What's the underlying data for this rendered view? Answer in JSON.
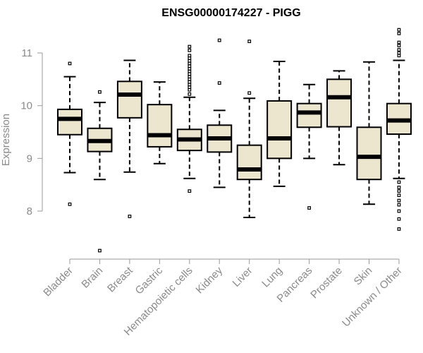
{
  "chart_data": {
    "type": "boxplot",
    "title": "ENSG00000174227 - PIGG",
    "ylabel": "Expression",
    "xlabel": "",
    "ylim": [
      7.0,
      11.6
    ],
    "yticks": [
      "8",
      "9",
      "10",
      "11"
    ],
    "box_fill": "#ede6cf",
    "categories": [
      "Bladder",
      "Brain",
      "Breast",
      "Gastric",
      "Hematopoietic cells",
      "Kidney",
      "Liver",
      "Lung",
      "Pancreas",
      "Prostate",
      "Skin",
      "Unknown / Other"
    ],
    "series": [
      {
        "category": "Bladder",
        "whisker_low": 8.73,
        "q1": 9.45,
        "median": 9.75,
        "q3": 9.93,
        "whisker_high": 10.55,
        "outliers": [
          10.8,
          8.13
        ]
      },
      {
        "category": "Brain",
        "whisker_low": 8.6,
        "q1": 9.13,
        "median": 9.33,
        "q3": 9.57,
        "whisker_high": 10.06,
        "outliers": [
          10.26,
          7.25
        ]
      },
      {
        "category": "Breast",
        "whisker_low": 8.74,
        "q1": 9.77,
        "median": 10.21,
        "q3": 10.46,
        "whisker_high": 10.86,
        "outliers": [
          7.9
        ]
      },
      {
        "category": "Gastric",
        "whisker_low": 8.9,
        "q1": 9.22,
        "median": 9.44,
        "q3": 10.02,
        "whisker_high": 10.45,
        "outliers": []
      },
      {
        "category": "Hematopoietic cells",
        "whisker_low": 8.62,
        "q1": 9.15,
        "median": 9.36,
        "q3": 9.55,
        "whisker_high": 10.16,
        "outliers": [
          10.22,
          10.3,
          10.35,
          10.4,
          10.45,
          10.5,
          10.55,
          10.6,
          10.65,
          10.7,
          10.75,
          10.8,
          10.85,
          10.9,
          10.95,
          11.05,
          11.12,
          8.38
        ]
      },
      {
        "category": "Kidney",
        "whisker_low": 8.45,
        "q1": 9.12,
        "median": 9.38,
        "q3": 9.63,
        "whisker_high": 9.91,
        "outliers": [
          11.24,
          10.43
        ]
      },
      {
        "category": "Liver",
        "whisker_low": 7.88,
        "q1": 8.6,
        "median": 8.79,
        "q3": 9.25,
        "whisker_high": 10.14,
        "outliers": [
          11.22,
          10.24
        ]
      },
      {
        "category": "Lung",
        "whisker_low": 8.47,
        "q1": 9.0,
        "median": 9.38,
        "q3": 10.09,
        "whisker_high": 10.84,
        "outliers": []
      },
      {
        "category": "Pancreas",
        "whisker_low": 9.0,
        "q1": 9.59,
        "median": 9.87,
        "q3": 10.04,
        "whisker_high": 10.4,
        "outliers": [
          8.06
        ]
      },
      {
        "category": "Prostate",
        "whisker_low": 8.88,
        "q1": 9.6,
        "median": 10.16,
        "q3": 10.5,
        "whisker_high": 10.66,
        "outliers": []
      },
      {
        "category": "Skin",
        "whisker_low": 8.13,
        "q1": 8.6,
        "median": 9.03,
        "q3": 9.59,
        "whisker_high": 10.83,
        "outliers": []
      },
      {
        "category": "Unknown / Other",
        "whisker_low": 8.62,
        "q1": 9.46,
        "median": 9.72,
        "q3": 10.04,
        "whisker_high": 10.86,
        "outliers": [
          11.44,
          11.37,
          11.2,
          11.14,
          11.06,
          11.0,
          10.95,
          8.55,
          8.45,
          8.38,
          8.3,
          8.2,
          8.12,
          8.0,
          7.85,
          7.66
        ]
      }
    ]
  }
}
